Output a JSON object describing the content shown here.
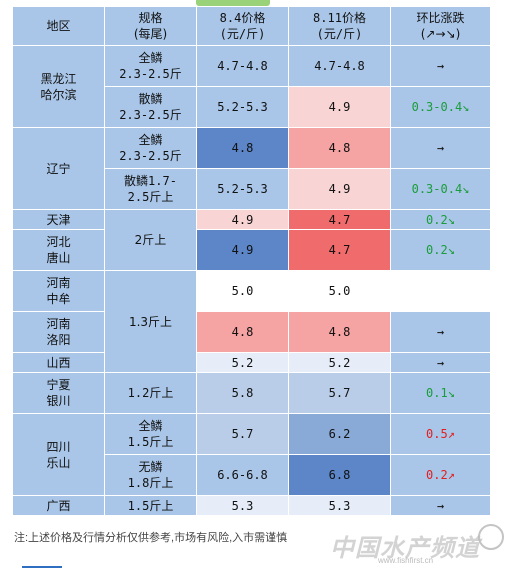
{
  "header": {
    "region": "地区",
    "spec_line1": "规格",
    "spec_line2": "(每尾)",
    "price1_line1": "8.4价格",
    "price1_line2": "(元/斤)",
    "price2_line1": "8.11价格",
    "price2_line2": "(元/斤)",
    "change_line1": "环比涨跌",
    "change_line2": "(↗→↘)"
  },
  "rows": [
    {
      "spec1": "全鳞",
      "spec2": "2.3-2.5斤",
      "p1": "4.7-4.8",
      "p2": "4.7-4.8",
      "change": "→"
    },
    {
      "spec1": "散鳞",
      "spec2": "2.3-2.5斤",
      "p1": "5.2-5.3",
      "p2": "4.9",
      "change": "0.3-0.4↘"
    },
    {
      "spec1": "全鳞",
      "spec2": "2.3-2.5斤",
      "p1": "4.8",
      "p2": "4.8",
      "change": "→"
    },
    {
      "spec1": "散鳞1.7-",
      "spec2": "2.5斤上",
      "p1": "5.2-5.3",
      "p2": "4.9",
      "change": "0.3-0.4↘"
    },
    {
      "p1": "4.9",
      "p2": "4.7",
      "change": "0.2↘"
    },
    {
      "p1": "4.9",
      "p2": "4.7",
      "change": "0.2↘"
    },
    {
      "p1": "5.0",
      "p2": "5.0",
      "change": ""
    },
    {
      "p1": "4.8",
      "p2": "4.8",
      "change": "→"
    },
    {
      "p1": "5.2",
      "p2": "5.2",
      "change": "→"
    },
    {
      "spec": "1.2斤上",
      "p1": "5.8",
      "p2": "5.7",
      "change": "0.1↘"
    },
    {
      "spec1": "全鳞",
      "spec2": "1.5斤上",
      "p1": "5.7",
      "p2": "6.2",
      "change": "0.5↗"
    },
    {
      "spec1": "无鳞",
      "spec2": "1.8斤上",
      "p1": "6.6-6.8",
      "p2": "6.8",
      "change": "0.2↗"
    },
    {
      "spec": "1.5斤上",
      "p1": "5.3",
      "p2": "5.3",
      "change": "→"
    }
  ],
  "regions": {
    "heilongjiang_line1": "黑龙江",
    "heilongjiang_line2": "哈尔滨",
    "liaoning": "辽宁",
    "tianjin": "天津",
    "hebei_line1": "河北",
    "hebei_line2": "唐山",
    "henan_zhongmou_line1": "河南",
    "henan_zhongmou_line2": "中牟",
    "henan_luoyang_line1": "河南",
    "henan_luoyang_line2": "洛阳",
    "shanxi": "山西",
    "ningxia_line1": "宁夏",
    "ningxia_line2": "银川",
    "sichuan_line1": "四川",
    "sichuan_line2": "乐山",
    "guangxi": "广西"
  },
  "merged_specs": {
    "tianjin_hebei": "2斤上",
    "henan_shanxi": "1.3斤上"
  },
  "footer": {
    "note": "注:上述价格及行情分析仅供参考,市场有风险,入市需谨慎",
    "watermark": "中国水产频道",
    "watermark_url": "www.fishfirst.cn"
  },
  "colors": {
    "cell_default": "#a9c6e8",
    "increase_text": "#e21f1f",
    "decrease_text": "#1a9c3a",
    "heat_blue": "#5c86c8",
    "heat_red": "#f06b6b"
  }
}
